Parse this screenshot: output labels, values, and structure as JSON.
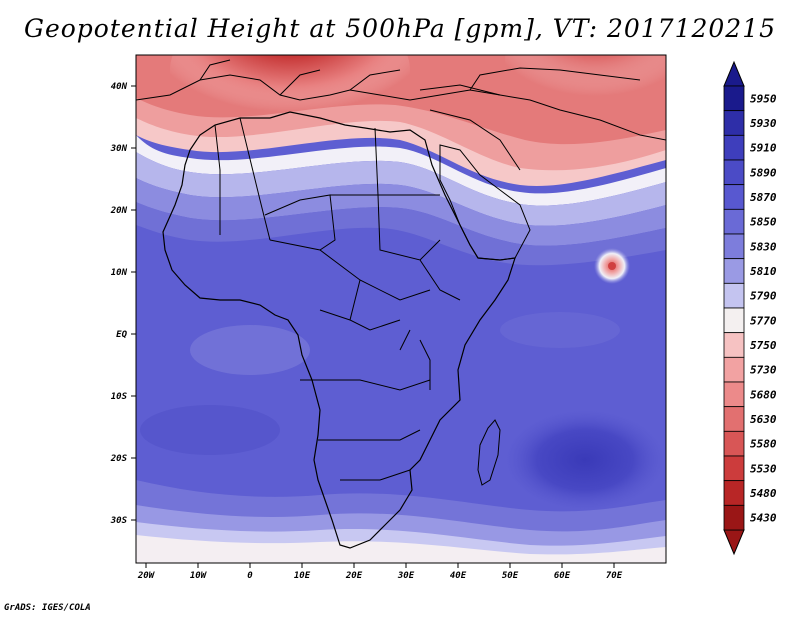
{
  "title": "Geopotential Height at 500hPa [gpm], VT: 2017120215",
  "credit": "GrADS: IGES/COLA",
  "lat_labels": [
    "40N",
    "30N",
    "20N",
    "10N",
    "EQ",
    "10S",
    "20S",
    "30S"
  ],
  "lon_labels": [
    "20W",
    "10W",
    "0",
    "10E",
    "20E",
    "30E",
    "40E",
    "50E",
    "60E",
    "70E"
  ],
  "colorbar": {
    "levels": [
      "5950",
      "5930",
      "5910",
      "5890",
      "5870",
      "5850",
      "5830",
      "5810",
      "5790",
      "5770",
      "5750",
      "5730",
      "5680",
      "5630",
      "5580",
      "5530",
      "5480",
      "5430"
    ],
    "colors": [
      "#1a1a8c",
      "#2e2ea8",
      "#3e3ebc",
      "#4b4bc6",
      "#5858d0",
      "#6a6ad6",
      "#7d7ddc",
      "#9a9ae4",
      "#c4c4f0",
      "#f4f0f0",
      "#f6c2c2",
      "#f2a2a2",
      "#ec8a8a",
      "#e27070",
      "#d85656",
      "#cc3c3c",
      "#b82626",
      "#9a1616"
    ]
  },
  "icons": {
    "colorbar_top": "up-triangle",
    "colorbar_bottom": "down-triangle"
  }
}
